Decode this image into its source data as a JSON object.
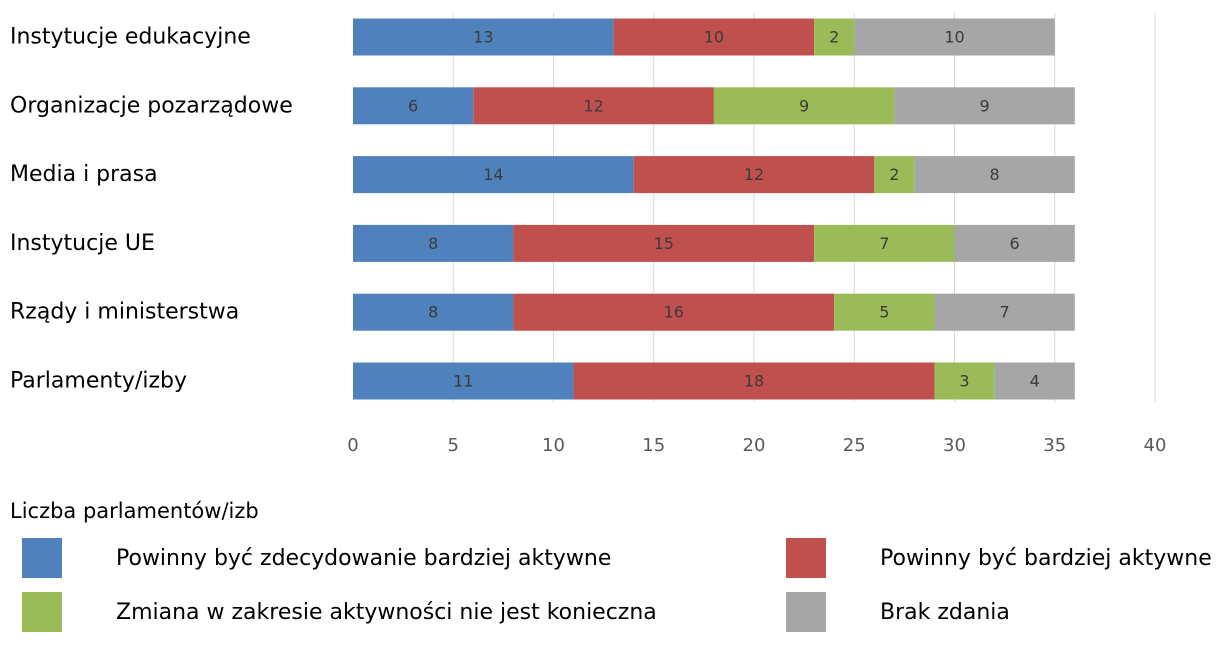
{
  "chart_data": {
    "type": "bar",
    "orientation": "horizontal",
    "stacked": true,
    "categories": [
      "Instytucje edukacyjne",
      "Organizacje pozarządowe",
      "Media i prasa",
      "Instytucje UE",
      "Rządy i ministerstwa",
      "Parlamenty/izby"
    ],
    "series": [
      {
        "name": "Powinny być zdecydowanie bardziej aktywne",
        "color": "#4F81BD",
        "values": [
          13,
          6,
          14,
          8,
          8,
          11
        ]
      },
      {
        "name": "Powinny być bardziej aktywne",
        "color": "#C0504D",
        "values": [
          10,
          12,
          12,
          15,
          16,
          18
        ]
      },
      {
        "name": "Zmiana w zakresie aktywności nie jest konieczna",
        "color": "#9BBB59",
        "values": [
          2,
          9,
          2,
          7,
          5,
          3
        ]
      },
      {
        "name": "Brak zdania",
        "color": "#A6A6A6",
        "values": [
          10,
          9,
          8,
          6,
          7,
          4
        ]
      }
    ],
    "xlabel": "Liczba parlamentów/izb",
    "ylabel": "",
    "xlim": [
      0,
      40
    ],
    "xticks": [
      0,
      5,
      10,
      15,
      20,
      25,
      30,
      35,
      40
    ],
    "grid": "vertical",
    "legend_position": "bottom"
  }
}
